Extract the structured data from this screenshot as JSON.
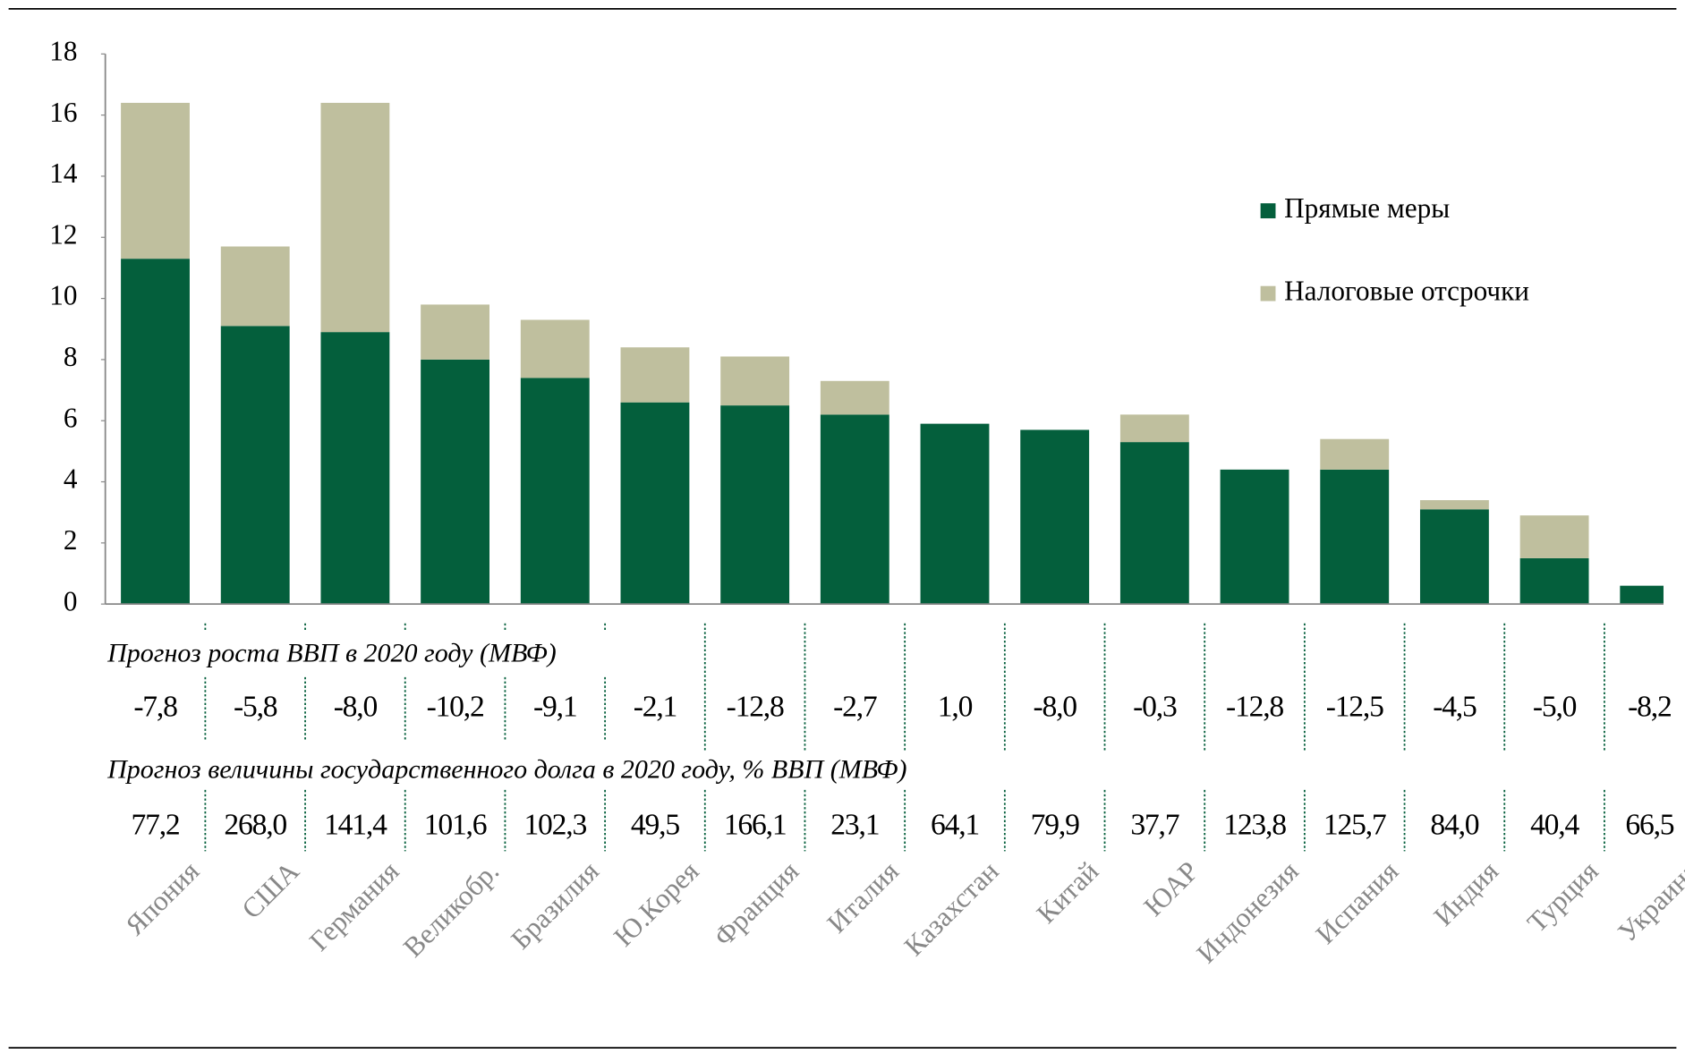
{
  "chart_data": {
    "type": "stacked_bar",
    "categories": [
      "Япония",
      "США",
      "Германия",
      "Великобр.",
      "Бразилия",
      "Ю.Корея",
      "Франция",
      "Италия",
      "Казахстан",
      "Китай",
      "ЮАР",
      "Индонезия",
      "Испания",
      "Индия",
      "Турция",
      "Украина"
    ],
    "series": [
      {
        "name": "Прямые меры",
        "color": "#045f3c",
        "values": [
          11.3,
          9.1,
          8.9,
          8.0,
          7.4,
          6.6,
          6.5,
          6.2,
          5.9,
          5.7,
          5.3,
          4.4,
          4.4,
          3.1,
          1.5,
          0.6
        ]
      },
      {
        "name": "Налоговые отсрочки",
        "color": "#bfbf9e",
        "values": [
          5.1,
          2.6,
          7.5,
          1.8,
          1.9,
          1.8,
          1.6,
          1.1,
          0,
          0,
          0.9,
          0,
          1.0,
          0.3,
          1.4,
          0
        ]
      }
    ],
    "ylim": [
      0,
      18
    ],
    "yticks": [
      0,
      2,
      4,
      6,
      8,
      10,
      12,
      14,
      16,
      18
    ],
    "legend": "right",
    "table": [
      {
        "title": "Прогноз роста ВВП в 2020 году (МВФ)",
        "values": [
          -7.8,
          -5.8,
          -8.0,
          -10.2,
          -9.1,
          -2.1,
          -12.8,
          -2.7,
          1.0,
          -8.0,
          -0.3,
          -12.8,
          -12.5,
          -4.5,
          -5.0,
          -8.2
        ],
        "value_labels": [
          "-7,8",
          "-5,8",
          "-8,0",
          "-10,2",
          "-9,1",
          "-2,1",
          "-12,8",
          "-2,7",
          "1,0",
          "-8,0",
          "-0,3",
          "-12,8",
          "-12,5",
          "-4,5",
          "-5,0",
          "-8,2"
        ]
      },
      {
        "title": "Прогноз величины государственного долга в 2020 году, % ВВП (МВФ)",
        "values": [
          77.2,
          268.0,
          141.4,
          101.6,
          102.3,
          49.5,
          166.1,
          23.1,
          64.1,
          79.9,
          37.7,
          123.8,
          125.7,
          84.0,
          40.4,
          66.5
        ],
        "value_labels": [
          "77,2",
          "268,0",
          "141,4",
          "101,6",
          "102,3",
          "49,5",
          "166,1",
          "23,1",
          "64,1",
          "79,9",
          "37,7",
          "123,8",
          "125,7",
          "84,0",
          "40,4",
          "66,5"
        ]
      }
    ]
  }
}
